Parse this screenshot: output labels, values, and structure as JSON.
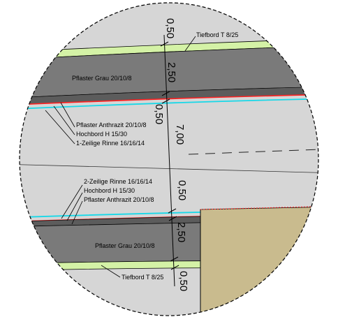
{
  "section": {
    "dimensions": {
      "top_kerb": "0,50",
      "top_paving": "2,50",
      "top_gutter": "0,50",
      "carriageway": "7,00",
      "bottom_gutter": "0,50",
      "bottom_paving": "2,50",
      "bottom_kerb": "0,50"
    },
    "labels": {
      "tiefbord_top": "Tiefbord T 8/25",
      "pflaster_grau_top": "Pflaster Grau 20/10/8",
      "pflaster_anthrazit_top": "Pflaster Anthrazit 20/10/8",
      "hochbord_top": "Hochbord H 15/30",
      "rinne_top": "1-Zeilige Rinne 16/16/14",
      "rinne_bottom": "2-Zeilige Rinne 16/16/14",
      "hochbord_bottom": "Hochbord H 15/30",
      "pflaster_anthrazit_bottom": "Pflaster Anthrazit 20/10/8",
      "pflaster_grau_bottom": "Pflaster Grau 20/10/8",
      "tiefbord_bottom": "Tiefbord T 8/25"
    },
    "colors": {
      "tiefbord": "#d4f2a6",
      "pflaster_grau": "#7a7a7a",
      "pflaster_anthrazit": "#5c5c5c",
      "road": "#d6d6d6",
      "curb_line": "#ff2020",
      "gutter_line": "#18d8e8",
      "plot_fill": "#c9bb8e"
    }
  }
}
